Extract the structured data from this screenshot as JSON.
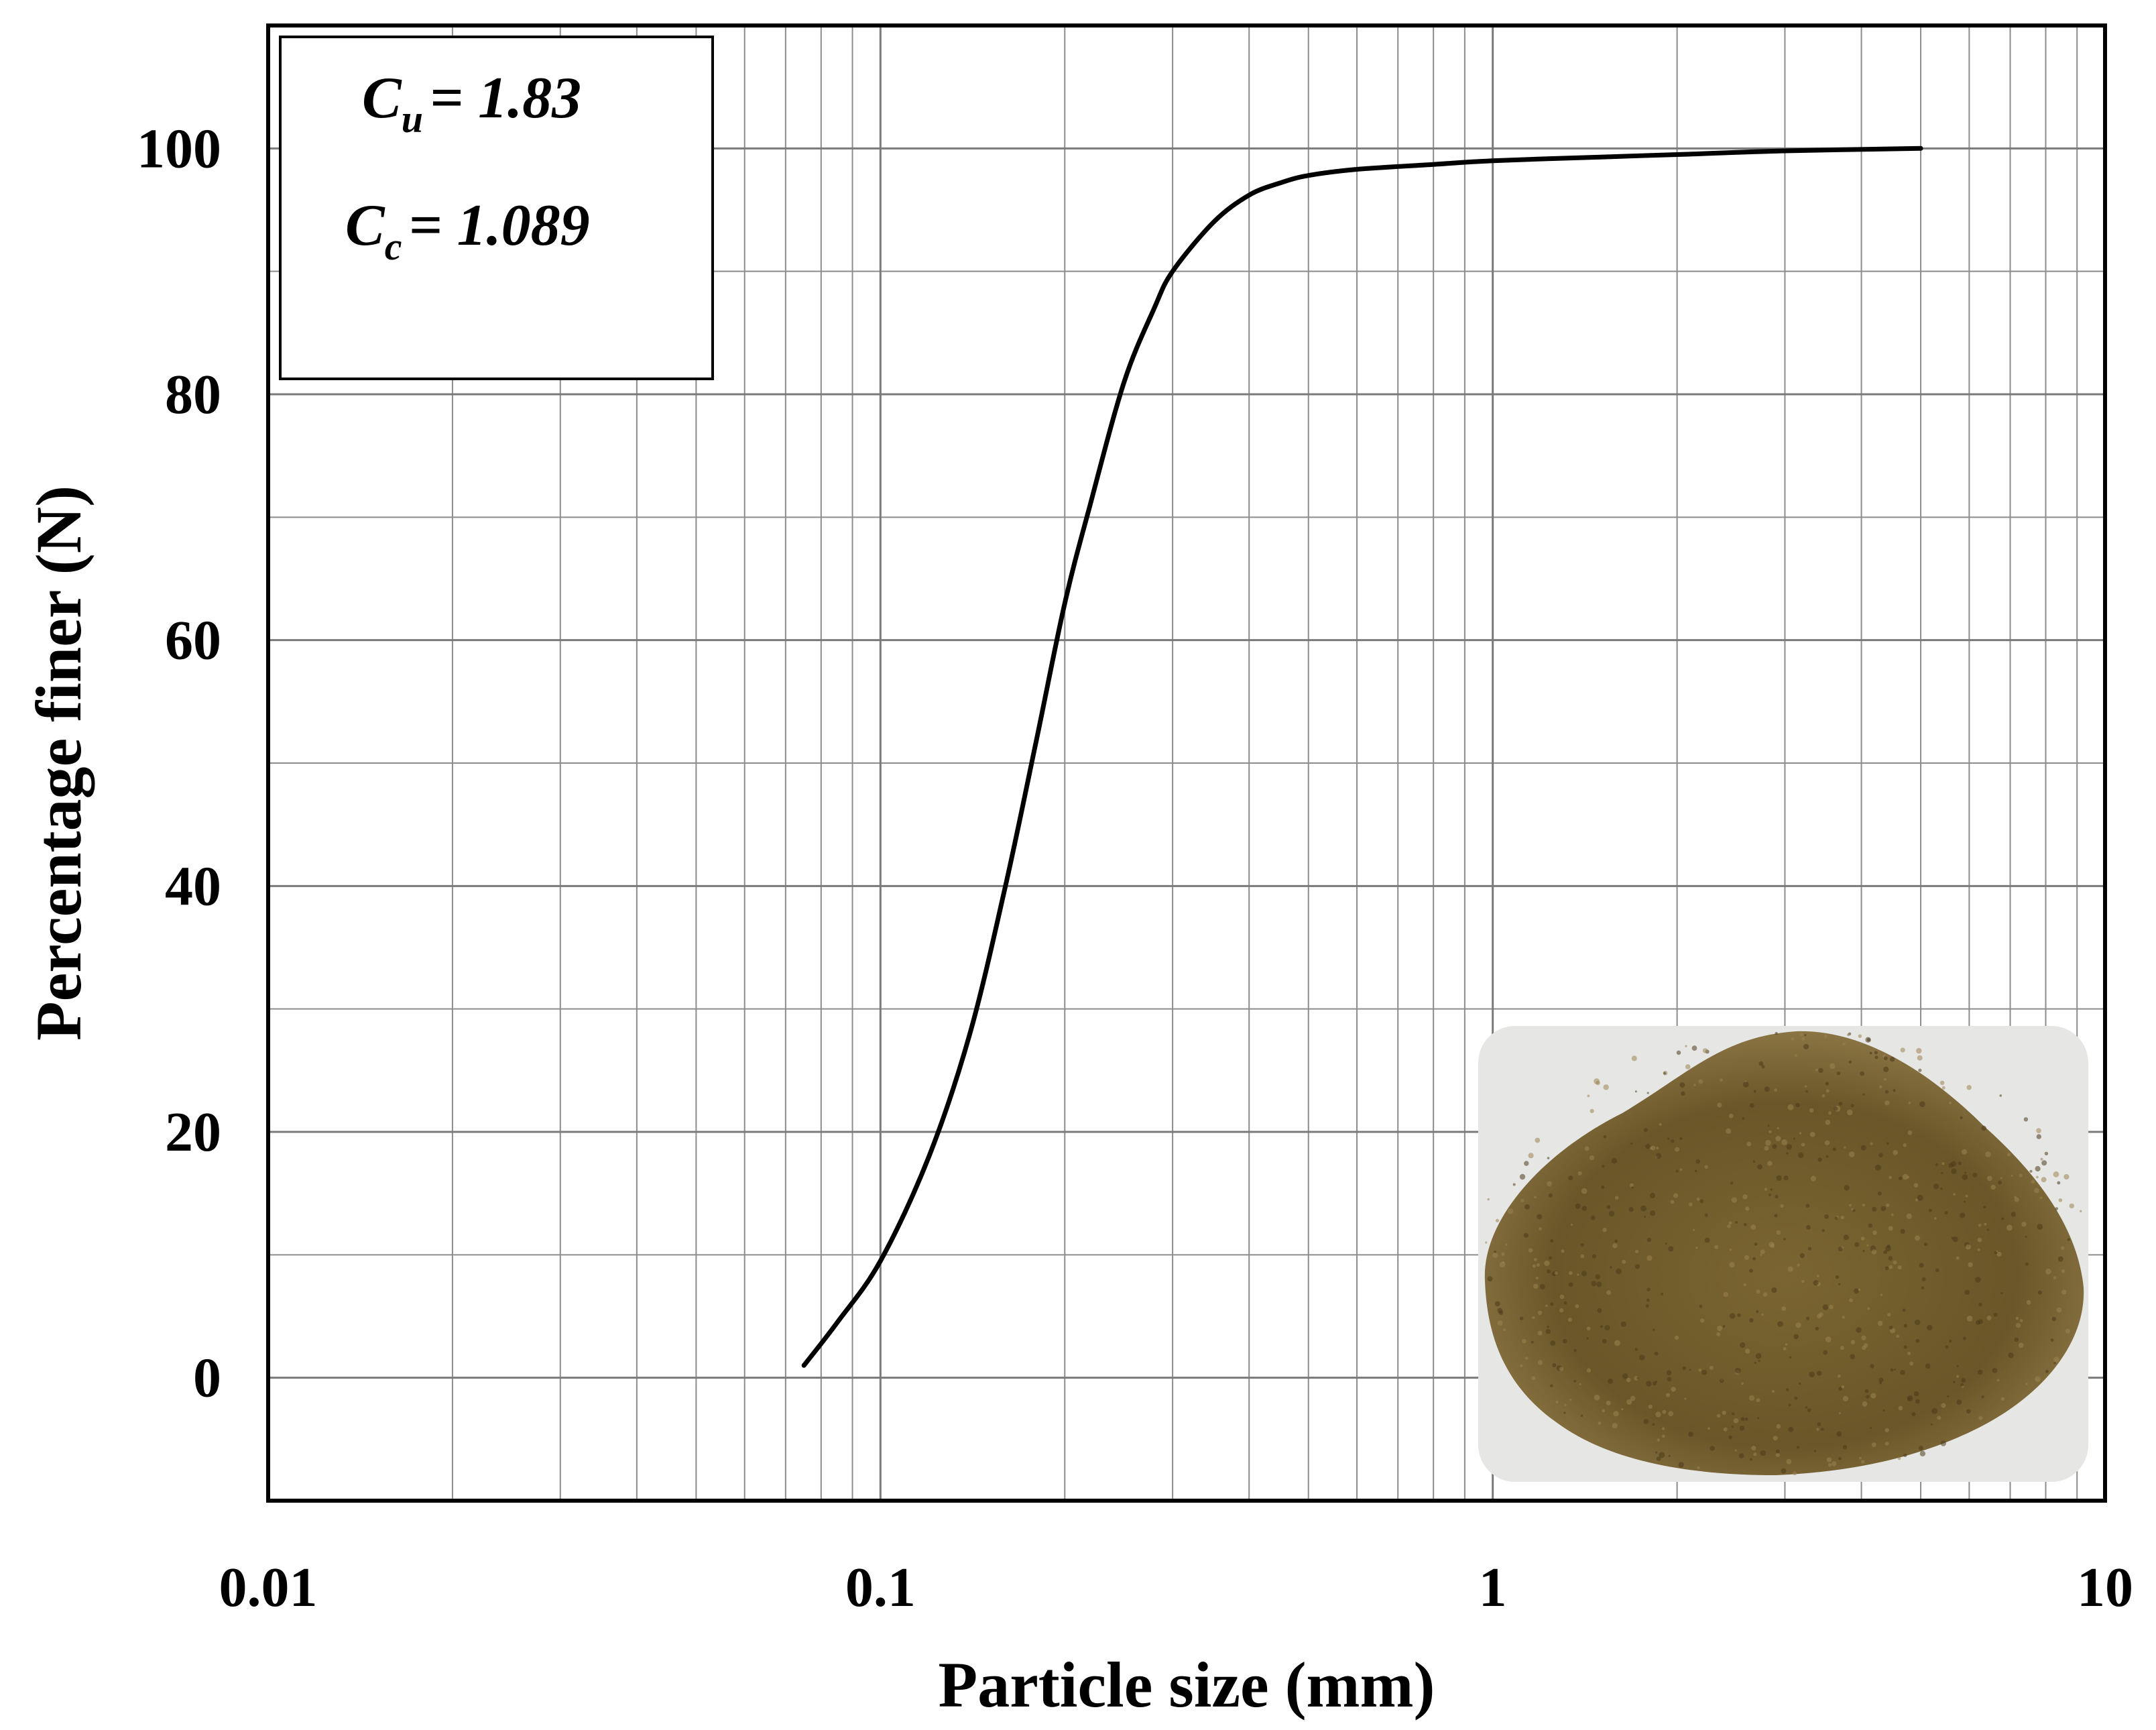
{
  "chart_data": {
    "type": "line",
    "xlabel": "Particle size (mm)",
    "ylabel": "Percentage finer (N)",
    "x_scale": "log",
    "xlim": [
      0.01,
      10
    ],
    "ylim": [
      -10,
      110
    ],
    "x_ticks": [
      0.01,
      0.1,
      1,
      10
    ],
    "x_tick_labels": [
      "0.01",
      "0.1",
      "1",
      "10"
    ],
    "y_ticks": [
      0,
      20,
      40,
      60,
      80,
      100
    ],
    "y_tick_labels": [
      "0",
      "20",
      "40",
      "60",
      "80",
      "100"
    ],
    "grid": true,
    "series": [
      {
        "color": "#000000",
        "x": [
          0.075,
          0.085,
          0.1,
          0.12,
          0.14,
          0.16,
          0.18,
          0.2,
          0.22,
          0.25,
          0.28,
          0.3,
          0.35,
          0.4,
          0.45,
          0.5,
          0.6,
          0.8,
          1.0,
          1.5,
          2,
          3,
          5
        ],
        "y": [
          1,
          4.5,
          9.5,
          18,
          28,
          40,
          52,
          63,
          71,
          81,
          87,
          90,
          94,
          96.2,
          97.2,
          97.8,
          98.3,
          98.7,
          99,
          99.3,
          99.5,
          99.8,
          100
        ]
      }
    ],
    "annotations": [
      {
        "symbol": "C",
        "subscript": "u",
        "value": "= 1.83"
      },
      {
        "symbol": "C",
        "subscript": "c",
        "value": "= 1.089"
      }
    ]
  },
  "inset_image": {
    "subject": "sand-sample-photo",
    "colors": {
      "background": "#e8e8e6",
      "sand": "#6e5a2c",
      "sand_light": "#9a8450",
      "sand_dark": "#4a3a1a"
    }
  }
}
